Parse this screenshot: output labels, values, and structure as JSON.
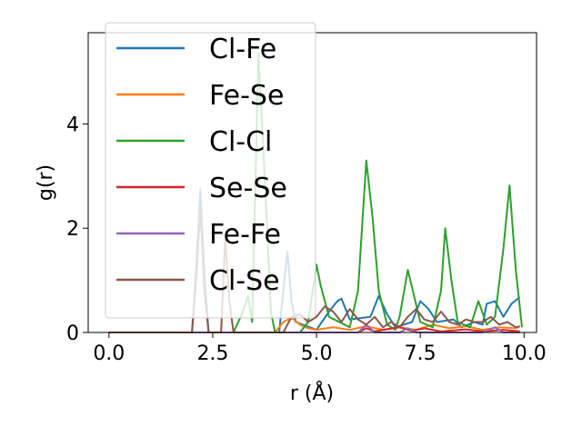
{
  "chart_data": {
    "type": "line",
    "title": "",
    "xlabel": "r (Å)",
    "ylabel": "g(r)",
    "xlim": [
      -0.5,
      10.3
    ],
    "ylim": [
      0,
      5.75
    ],
    "x_ticks": [
      0.0,
      2.5,
      5.0,
      7.5,
      10.0
    ],
    "x_tick_labels": [
      "0.0",
      "2.5",
      "5.0",
      "7.5",
      "10.0"
    ],
    "y_ticks": [
      0,
      2,
      4
    ],
    "y_tick_labels": [
      "0",
      "2",
      "4"
    ],
    "grid": false,
    "legend_placement": "upper-left",
    "series": [
      {
        "name": "Cl-Fe",
        "color": "#1f77b4",
        "x": [
          0.0,
          2.0,
          2.1,
          2.2,
          2.3,
          2.4,
          4.1,
          4.2,
          4.3,
          4.4,
          4.5,
          5.0,
          5.3,
          5.5,
          5.6,
          5.8,
          6.3,
          6.5,
          6.7,
          6.9,
          7.3,
          7.5,
          7.7,
          7.9,
          8.3,
          8.5,
          8.8,
          9.0,
          9.1,
          9.3,
          9.5,
          9.7,
          9.9
        ],
        "y": [
          0.0,
          0.0,
          1.2,
          2.75,
          1.1,
          0.0,
          0.0,
          0.8,
          1.55,
          0.6,
          0.2,
          0.05,
          0.4,
          0.6,
          0.65,
          0.25,
          0.3,
          0.7,
          0.35,
          0.1,
          0.2,
          0.6,
          0.45,
          0.2,
          0.25,
          0.1,
          0.2,
          0.15,
          0.55,
          0.6,
          0.3,
          0.55,
          0.68
        ]
      },
      {
        "name": "Fe-Se",
        "color": "#ff7f0e",
        "x": [
          0.0,
          4.0,
          4.2,
          4.4,
          4.6,
          4.8,
          5.0,
          5.4,
          5.8,
          6.2,
          6.6,
          7.0,
          7.4,
          7.8,
          8.2,
          8.6,
          9.0,
          9.4,
          9.8,
          9.9
        ],
        "y": [
          0.0,
          0.0,
          0.2,
          0.28,
          0.15,
          0.08,
          0.05,
          0.1,
          0.05,
          0.12,
          0.05,
          0.1,
          0.05,
          0.15,
          0.08,
          0.12,
          0.05,
          0.1,
          0.08,
          0.12
        ]
      },
      {
        "name": "Cl-Cl",
        "color": "#2ca02c",
        "x": [
          0.0,
          3.0,
          3.2,
          3.35,
          3.45,
          3.6,
          3.75,
          3.9,
          4.0,
          4.6,
          4.8,
          5.0,
          5.1,
          5.3,
          5.8,
          6.0,
          6.2,
          6.35,
          6.5,
          6.7,
          6.9,
          7.0,
          7.2,
          7.35,
          7.5,
          7.8,
          8.0,
          8.1,
          8.25,
          8.4,
          8.7,
          8.9,
          9.1,
          9.3,
          9.5,
          9.65,
          9.8,
          9.95
        ],
        "y": [
          0.0,
          0.0,
          0.35,
          0.7,
          0.2,
          5.35,
          3.0,
          0.4,
          0.0,
          0.0,
          0.2,
          1.3,
          0.9,
          0.3,
          0.1,
          0.8,
          3.3,
          2.2,
          0.8,
          0.15,
          0.05,
          0.3,
          1.2,
          0.7,
          0.2,
          0.1,
          0.8,
          2.0,
          1.0,
          0.2,
          0.1,
          0.6,
          0.15,
          0.3,
          1.6,
          2.82,
          1.2,
          0.1
        ]
      },
      {
        "name": "Se-Se",
        "color": "#d62728",
        "x": [
          0.0,
          6.0,
          6.2,
          6.4,
          6.6,
          7.0,
          7.3,
          7.6,
          8.0,
          8.6,
          9.0,
          9.5,
          9.9
        ],
        "y": [
          0.0,
          0.0,
          0.08,
          0.02,
          0.05,
          0.1,
          0.03,
          0.08,
          0.02,
          0.06,
          0.02,
          0.05,
          0.02
        ]
      },
      {
        "name": "Fe-Fe",
        "color": "#9467bd",
        "x": [
          0.0,
          4.5,
          5.0,
          5.5,
          6.0,
          6.2,
          6.4,
          7.0,
          7.2,
          7.4,
          8.0,
          9.0,
          9.3,
          9.5,
          9.9
        ],
        "y": [
          0.0,
          0.0,
          0.0,
          0.0,
          0.0,
          0.15,
          0.0,
          0.0,
          0.08,
          0.0,
          0.0,
          0.0,
          0.1,
          0.0,
          0.0
        ]
      },
      {
        "name": "Cl-Se",
        "color": "#8c564b",
        "x": [
          0.0,
          2.0,
          2.1,
          2.2,
          2.3,
          2.4,
          2.7,
          2.8,
          2.9,
          3.0,
          4.2,
          4.4,
          4.6,
          4.8,
          5.0,
          5.2,
          5.4,
          5.6,
          5.8,
          6.0,
          6.2,
          6.4,
          6.6,
          6.8,
          7.0,
          7.2,
          7.4,
          7.6,
          7.8,
          8.0,
          8.2,
          8.4,
          8.6,
          8.8,
          9.0,
          9.2,
          9.4,
          9.6,
          9.8,
          9.9
        ],
        "y": [
          0.0,
          0.0,
          1.0,
          2.4,
          0.8,
          0.0,
          0.0,
          1.8,
          0.6,
          0.0,
          0.0,
          0.3,
          0.35,
          0.2,
          0.3,
          0.5,
          0.4,
          0.2,
          0.45,
          0.25,
          0.15,
          0.3,
          0.1,
          0.2,
          0.1,
          0.3,
          0.45,
          0.25,
          0.2,
          0.4,
          0.2,
          0.15,
          0.25,
          0.2,
          0.2,
          0.3,
          0.15,
          0.2,
          0.1,
          0.12
        ]
      }
    ]
  }
}
